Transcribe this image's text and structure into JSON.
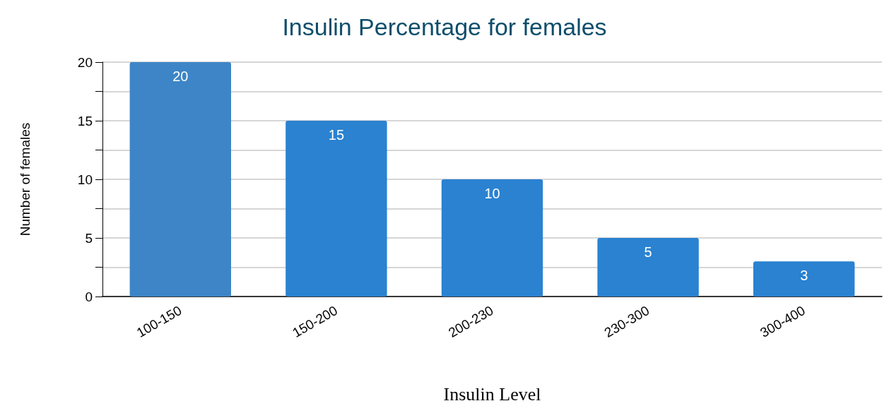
{
  "chart_data": {
    "type": "bar",
    "title": "Insulin Percentage for females",
    "xlabel": "Insulin Level",
    "ylabel": "Number of females",
    "categories": [
      "100-150",
      "150-200",
      "200-230",
      "230-300",
      "300-400"
    ],
    "values": [
      20,
      15,
      10,
      5,
      3
    ],
    "colors": [
      "#3d85c6",
      "#2a82d1",
      "#2a82d1",
      "#2a82d1",
      "#2a82d1"
    ],
    "ylim": [
      0,
      20
    ],
    "yticks": [
      0,
      {
        "value": 2.5,
        "label": null
      },
      5,
      {
        "value": 7.5,
        "label": null
      },
      10,
      {
        "value": 12.5,
        "label": null
      },
      15,
      {
        "value": 17.5,
        "label": null
      },
      20
    ],
    "grid": "y",
    "data_labels": true
  }
}
